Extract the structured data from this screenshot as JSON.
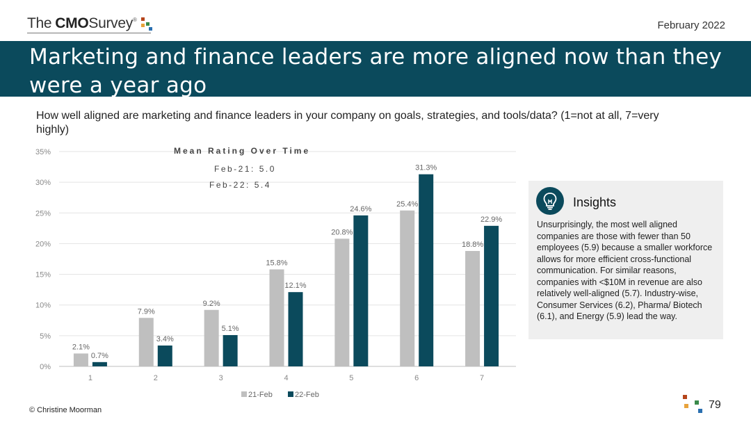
{
  "header": {
    "logo_the": "The",
    "logo_cmo": "CMO",
    "logo_survey": "Survey",
    "logo_registered": "®",
    "date": "February 2022",
    "title": "Marketing and finance leaders are more aligned now than they were a year ago"
  },
  "question": "How well aligned are marketing and finance leaders in your company on goals, strategies, and tools/data? (1=not at all, 7=very highly)",
  "mean_rating": {
    "title": "Mean Rating Over Time",
    "line1": "Feb-21: 5.0",
    "line2": "Feb-22: 5.4"
  },
  "chart_data": {
    "type": "bar",
    "categories": [
      "1",
      "2",
      "3",
      "4",
      "5",
      "6",
      "7"
    ],
    "series": [
      {
        "name": "21-Feb",
        "values": [
          2.1,
          7.9,
          9.2,
          15.8,
          20.8,
          25.4,
          18.8
        ],
        "labels": [
          "2.1%",
          "7.9%",
          "9.2%",
          "15.8%",
          "20.8%",
          "25.4%",
          "18.8%"
        ],
        "color": "#bfbfbf"
      },
      {
        "name": "22-Feb",
        "values": [
          0.7,
          3.4,
          5.1,
          12.1,
          24.6,
          31.3,
          22.9
        ],
        "labels": [
          "0.7%",
          "3.4%",
          "5.1%",
          "12.1%",
          "24.6%",
          "31.3%",
          "22.9%"
        ],
        "color": "#0b4a5c"
      }
    ],
    "ylim": [
      0,
      35
    ],
    "yticks": [
      "0%",
      "5%",
      "10%",
      "15%",
      "20%",
      "25%",
      "30%",
      "35%"
    ],
    "ytick_values": [
      0,
      5,
      10,
      15,
      20,
      25,
      30,
      35
    ],
    "grid": true,
    "legend": "bottom",
    "xlabel": "",
    "ylabel": "",
    "title": ""
  },
  "insights": {
    "title": "Insights",
    "icon": "lightbulb-icon",
    "text": "Unsurprisingly, the most well aligned companies are those with fewer than 50 employees (5.9) because a smaller workforce allows for more efficient cross-functional communication. For similar reasons, companies with <$10M in revenue are also relatively well-aligned (5.7). Industry-wise, Consumer Services (6.2), Pharma/ Biotech (6.1), and Energy (5.9) lead the way."
  },
  "footer": {
    "copyright": "© Christine Moorman",
    "page_number": "79"
  },
  "colors": {
    "brand_teal": "#0b4a5c",
    "gray_bar": "#bfbfbf",
    "logo_red": "#b5451b",
    "logo_orange": "#e8a33c",
    "logo_green": "#3a8a4a",
    "logo_blue": "#2a6fb0"
  }
}
